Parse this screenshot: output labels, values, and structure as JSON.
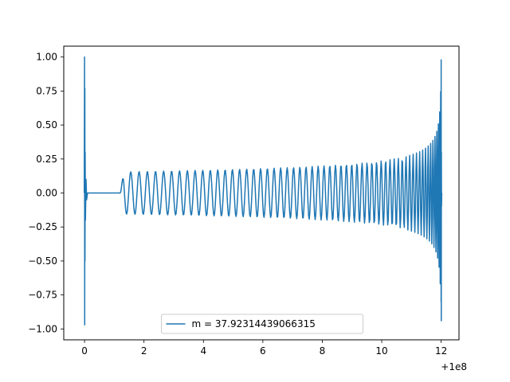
{
  "chart_data": {
    "type": "line",
    "title": "",
    "xlabel": "",
    "ylabel": "",
    "x_offset_label": "+1e8",
    "xlim": [
      -0.7,
      12.6
    ],
    "ylim": [
      -1.08,
      1.08
    ],
    "xticks": [
      0,
      2,
      4,
      6,
      8,
      10,
      12
    ],
    "xtick_labels": [
      "0",
      "2",
      "4",
      "6",
      "8",
      "10",
      "12"
    ],
    "yticks": [
      -1.0,
      -0.75,
      -0.5,
      -0.25,
      0.0,
      0.25,
      0.5,
      0.75,
      1.0
    ],
    "ytick_labels": [
      "−1.00",
      "−0.75",
      "−0.50",
      "−0.25",
      "0.00",
      "0.25",
      "0.50",
      "0.75",
      "1.00"
    ],
    "grid": false,
    "legend_position": "lower center",
    "series": [
      {
        "name": "m = 37.92314439066315",
        "color": "#1f77b4",
        "description_points": {
          "initial_spike": {
            "x": 0.0,
            "ymax": 1.0,
            "ymin": -0.97
          },
          "flat_segment": {
            "x_start": 0.1,
            "x_end": 1.2,
            "y": 0.0
          },
          "oscillation_start": {
            "x": 1.2,
            "amplitude": 0.18
          },
          "oscillation_mid": {
            "x": 8.0,
            "amplitude": 0.21
          },
          "oscillation_late": {
            "x": 11.0,
            "amplitude": 0.3
          },
          "final_spike": {
            "x": 12.0,
            "ymax": 0.98,
            "ymin": -0.94
          }
        }
      }
    ]
  }
}
